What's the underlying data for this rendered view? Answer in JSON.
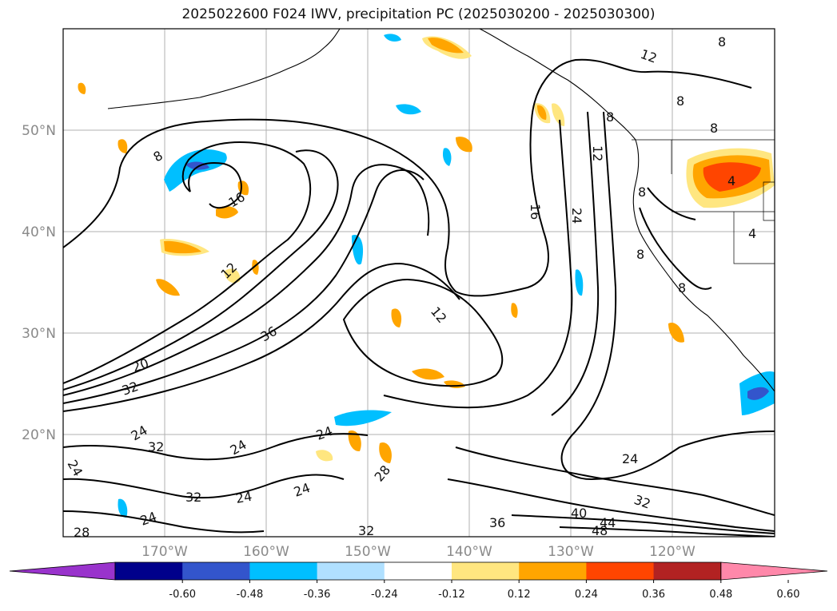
{
  "title": "2025022600 F024 IWV, precipitation PC (2025030200 - 2025030300)",
  "map": {
    "lat_labels": [
      "50°N",
      "40°N",
      "30°N",
      "20°N"
    ],
    "lon_labels": [
      "170°W",
      "160°W",
      "150°W",
      "140°W",
      "130°W",
      "120°W"
    ],
    "grid": true,
    "contour_labels": [
      "8",
      "12",
      "16",
      "20",
      "24",
      "28",
      "32",
      "36",
      "40",
      "44",
      "48",
      "4"
    ]
  },
  "colorbar": {
    "ticks": [
      "-0.60",
      "-0.48",
      "-0.36",
      "-0.24",
      "-0.12",
      "0.12",
      "0.24",
      "0.36",
      "0.48",
      "0.60"
    ],
    "colors": [
      "#9933cc",
      "#00008b",
      "#3355cc",
      "#00bfff",
      "#b0e0ff",
      "#ffffff",
      "#ffe680",
      "#ffa500",
      "#ff4500",
      "#b22222",
      "#ff88aa"
    ]
  }
}
